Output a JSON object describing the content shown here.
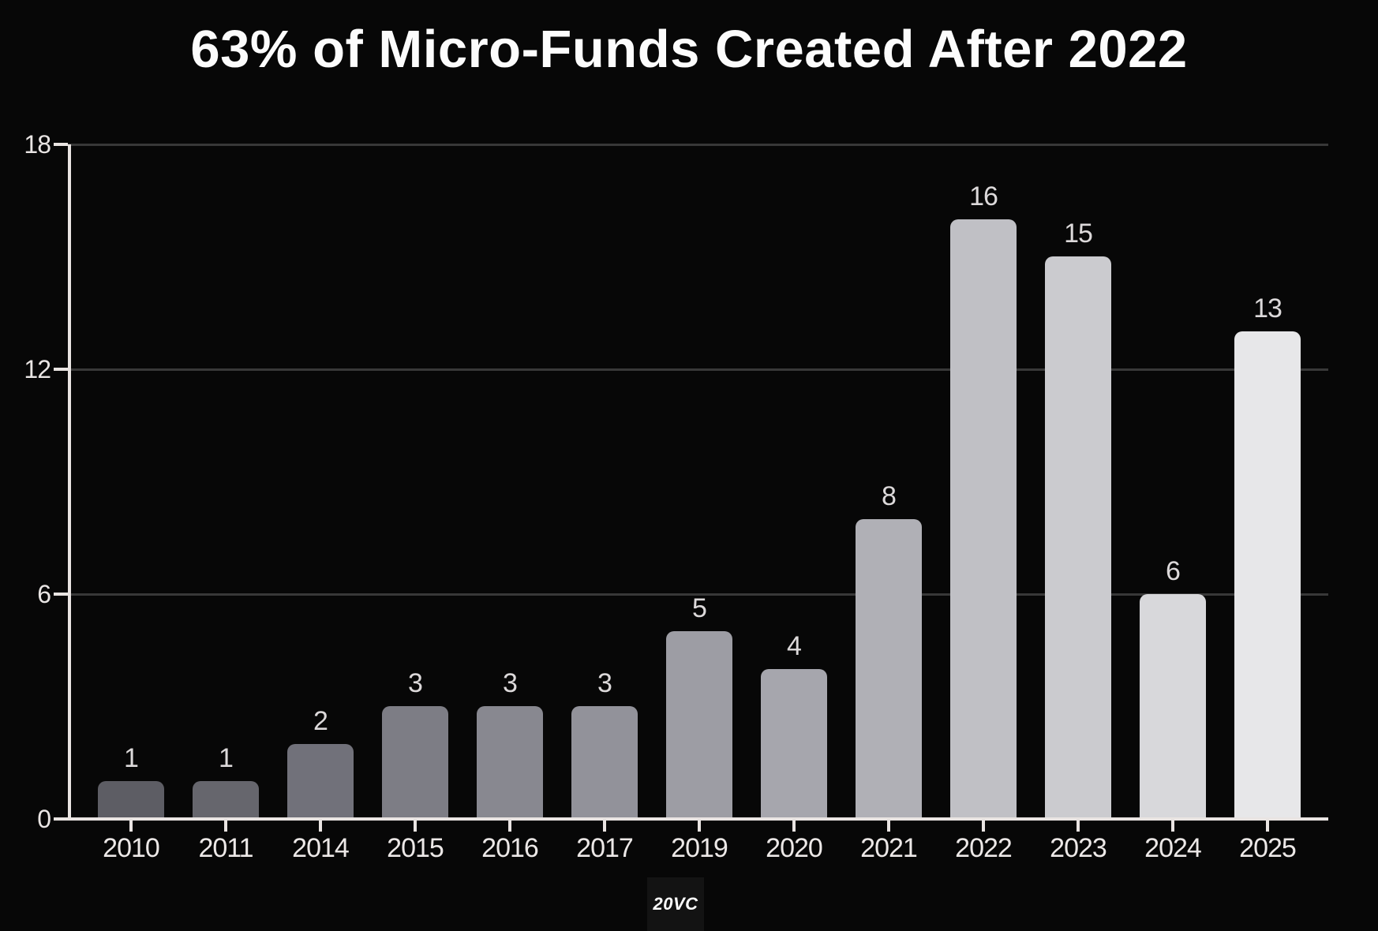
{
  "title": "63% of Micro-Funds Created After 2022",
  "logo": {
    "text": "20VC"
  },
  "colors": {
    "background": "#070707",
    "title": "#fcfcfc",
    "axis": "#e9e4e2",
    "gridline": "#383838",
    "tick_label": "#e9e5e4",
    "value_label": "#dcd9da",
    "logo_background": "#131313",
    "logo_text": "#ffffff"
  },
  "chart_data": {
    "type": "bar",
    "title": "63% of Micro-Funds Created After 2022",
    "categories": [
      "2010",
      "2011",
      "2014",
      "2015",
      "2016",
      "2017",
      "2019",
      "2020",
      "2021",
      "2022",
      "2023",
      "2024",
      "2025"
    ],
    "values": [
      1,
      1,
      2,
      3,
      3,
      3,
      5,
      4,
      8,
      16,
      15,
      6,
      13
    ],
    "bar_colors": [
      "#5d5d64",
      "#66666d",
      "#71717a",
      "#7d7d85",
      "#888890",
      "#92929a",
      "#9d9da4",
      "#a6a6ad",
      "#b0b0b6",
      "#c0c0c5",
      "#cbcbcf",
      "#d8d8db",
      "#e7e7e9"
    ],
    "xlabel": "",
    "ylabel": "",
    "ylim": [
      0,
      18
    ],
    "yticks": [
      0,
      6,
      12,
      18
    ],
    "grid": "horizontal-dark",
    "legend": "none",
    "value_labels": "above-bars",
    "watermark": "20VC"
  }
}
